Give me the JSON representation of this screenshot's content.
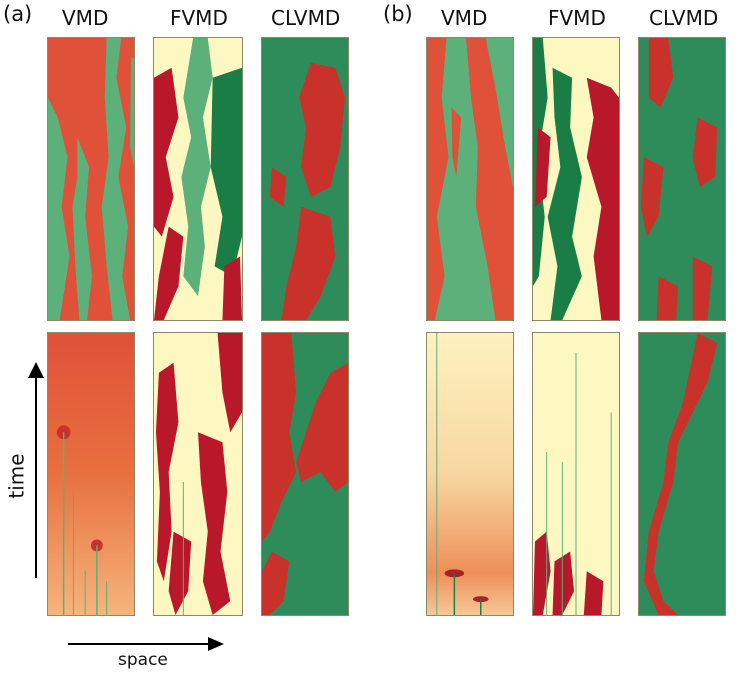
{
  "figure": {
    "panel_a_label": "(a)",
    "panel_b_label": "(b)",
    "columns": [
      "VMD",
      "FVMD",
      "CLVMD",
      "VMD",
      "FVMD",
      "CLVMD"
    ],
    "time_label": "time",
    "space_label": "space"
  },
  "palette": {
    "red": "#e0513a",
    "dark_red": "#b8182a",
    "light_green": "#5cb07a",
    "dark_green": "#1a7d45",
    "cream": "#fdf8c2",
    "orange": "#f3a060"
  }
}
